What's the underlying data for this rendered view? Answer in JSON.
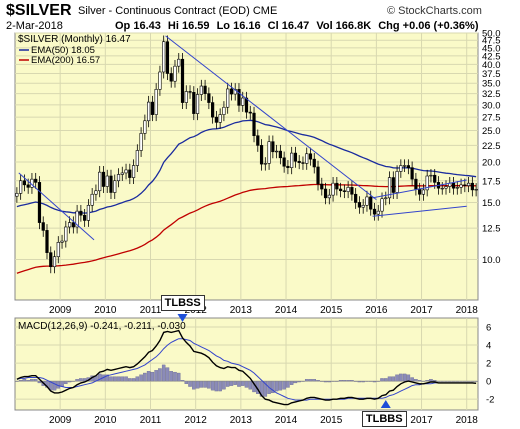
{
  "header": {
    "symbol": "$SILVER",
    "description": "Silver - Continuous Contract (EOD)",
    "exchange": "CME",
    "watermark": "© StockCharts.com",
    "date": "2-Mar-2018",
    "quote": {
      "open": "Op 16.43",
      "high": "Hi 16.59",
      "low": "Lo 16.16",
      "close": "Cl 16.47",
      "volume": "Vol 166.8K",
      "change": "Chg +0.06 (+0.36%)"
    }
  },
  "colors": {
    "background": "#fafac8",
    "candle_fill": "#ffffff",
    "candle_outline": "#000000",
    "ema50": "#1a2b9e",
    "ema200": "#c00000",
    "trendline": "#3344cc",
    "macd": "#000000",
    "signal": "#3344cc",
    "histogram": "#8b8bb8",
    "grid": "#d8d8b0"
  },
  "chart_data": [
    {
      "type": "candlestick",
      "title": "$SILVER (Monthly) 16.47",
      "legend": [
        {
          "name": "EMA(50) 18.05",
          "color": "#1a2b9e"
        },
        {
          "name": "EMA(200) 16.57",
          "color": "#c00000"
        }
      ],
      "x_ticks": [
        "2009",
        "2010",
        "2011",
        "2012",
        "2013",
        "2014",
        "2015",
        "2016",
        "2017",
        "2018"
      ],
      "y_ticks": [
        "50.0",
        "47.5",
        "45.0",
        "42.5",
        "40.0",
        "37.5",
        "35.0",
        "32.5",
        "30.0",
        "27.5",
        "25.0",
        "22.5",
        "20.0",
        "17.5",
        "15.0",
        "12.5",
        "10.0"
      ],
      "y_scale": "log",
      "ylim": [
        7.5,
        50
      ],
      "x_range": [
        "2008-01",
        "2018-03"
      ],
      "closes": [
        16.0,
        17.5,
        17.0,
        16.7,
        17.7,
        17.3,
        13.0,
        12.3,
        10.5,
        9.5,
        10.2,
        11.3,
        11.4,
        12.6,
        13.0,
        12.6,
        14.1,
        13.7,
        13.2,
        14.7,
        15.9,
        16.3,
        18.6,
        16.8,
        18.1,
        16.1,
        17.5,
        18.3,
        18.5,
        18.9,
        17.9,
        19.5,
        21.7,
        24.5,
        26.8,
        30.6,
        28.0,
        33.5,
        37.9,
        47.0,
        37.5,
        35.5,
        39.5,
        41.5,
        30.5,
        33.0,
        32.8,
        28.2,
        32.3,
        34.3,
        32.5,
        30.5,
        27.5,
        26.5,
        28.0,
        29.5,
        33.6,
        32.4,
        33.5,
        29.9,
        31.5,
        28.5,
        28.3,
        24.1,
        22.5,
        19.7,
        19.8,
        23.1,
        21.5,
        21.6,
        20.6,
        19.4,
        19.2,
        21.3,
        20.1,
        19.9,
        19.8,
        21.2,
        20.4,
        19.3,
        17.1,
        16.5,
        15.5,
        15.8,
        17.2,
        16.5,
        16.3,
        16.2,
        16.7,
        15.9,
        15.0,
        14.5,
        14.7,
        15.6,
        14.3,
        13.8,
        14.1,
        15.4,
        15.5,
        17.9,
        16.1,
        18.7,
        19.5,
        19.5,
        19.2,
        17.7,
        16.5,
        15.9,
        16.4,
        18.1,
        18.2,
        17.3,
        16.6,
        16.6,
        16.8,
        17.2,
        16.6,
        16.7,
        17.0,
        16.9,
        17.2,
        16.4,
        16.47
      ],
      "ema50_end": 18.05,
      "ema200_end": 16.57,
      "trendlines": [
        {
          "from": [
            "2008-02",
            18.5
          ],
          "to": [
            "2009-10",
            11.5
          ]
        },
        {
          "from": [
            "2011-05",
            49.0
          ],
          "to": [
            "2016-01",
            15.3
          ]
        },
        {
          "from": [
            "2015-12",
            13.6
          ],
          "to": [
            "2018-01",
            14.6
          ]
        },
        {
          "from": [
            "2015-12",
            15.5
          ],
          "to": [
            "2018-01",
            17.6
          ]
        }
      ]
    },
    {
      "type": "line",
      "title": "MACD(12,26,9) -0.241, -0.211, -0.030",
      "x_ticks": [
        "2009",
        "2010",
        "2011",
        "2012",
        "2013",
        "2014",
        "2015",
        "2016",
        "2017",
        "2018"
      ],
      "y_ticks": [
        "6",
        "4",
        "2",
        "0",
        "-2"
      ],
      "ylim": [
        -3.2,
        7.0
      ],
      "series": [
        {
          "key": "macd",
          "values": [
            0.2,
            0.4,
            0.5,
            0.5,
            0.6,
            0.6,
            0.2,
            -0.2,
            -0.6,
            -1.1,
            -1.3,
            -1.3,
            -1.2,
            -1.0,
            -0.8,
            -0.7,
            -0.4,
            -0.2,
            -0.1,
            0.1,
            0.4,
            0.6,
            1.0,
            1.1,
            1.3,
            1.2,
            1.3,
            1.4,
            1.5,
            1.6,
            1.5,
            1.6,
            1.9,
            2.3,
            2.7,
            3.2,
            3.4,
            3.9,
            4.5,
            5.4,
            5.5,
            5.4,
            5.5,
            5.6,
            4.8,
            4.3,
            3.9,
            3.3,
            3.2,
            3.1,
            2.9,
            2.6,
            2.1,
            1.7,
            1.5,
            1.4,
            1.6,
            1.5,
            1.5,
            1.2,
            1.1,
            0.7,
            0.3,
            -0.3,
            -0.9,
            -1.6,
            -2.0,
            -2.1,
            -2.3,
            -2.4,
            -2.5,
            -2.6,
            -2.6,
            -2.4,
            -2.3,
            -2.2,
            -2.1,
            -1.9,
            -1.8,
            -1.8,
            -1.9,
            -2.0,
            -2.1,
            -2.1,
            -2.0,
            -2.0,
            -1.9,
            -1.9,
            -1.8,
            -1.8,
            -1.9,
            -2.0,
            -2.0,
            -1.9,
            -1.9,
            -2.0,
            -1.9,
            -1.6,
            -1.5,
            -1.1,
            -1.0,
            -0.6,
            -0.3,
            -0.1,
            0.0,
            -0.1,
            -0.2,
            -0.3,
            -0.3,
            -0.2,
            -0.1,
            -0.1,
            -0.2,
            -0.2,
            -0.2,
            -0.2,
            -0.2,
            -0.2,
            -0.2,
            -0.2,
            -0.2,
            -0.2,
            -0.241
          ]
        },
        {
          "key": "signal",
          "values": [
            0.2,
            0.3,
            0.3,
            0.4,
            0.4,
            0.4,
            0.4,
            0.3,
            0.1,
            -0.1,
            -0.3,
            -0.5,
            -0.6,
            -0.7,
            -0.7,
            -0.7,
            -0.6,
            -0.5,
            -0.4,
            -0.3,
            -0.2,
            0.0,
            0.2,
            0.4,
            0.6,
            0.7,
            0.8,
            0.9,
            1.0,
            1.1,
            1.2,
            1.3,
            1.4,
            1.6,
            1.8,
            2.1,
            2.4,
            2.7,
            3.1,
            3.6,
            4.0,
            4.3,
            4.5,
            4.7,
            4.7,
            4.6,
            4.5,
            4.2,
            4.0,
            3.8,
            3.6,
            3.4,
            3.1,
            2.8,
            2.6,
            2.3,
            2.2,
            2.0,
            1.9,
            1.8,
            1.6,
            1.4,
            1.2,
            0.9,
            0.5,
            0.1,
            -0.3,
            -0.7,
            -1.0,
            -1.3,
            -1.5,
            -1.7,
            -1.9,
            -2.0,
            -2.1,
            -2.1,
            -2.1,
            -2.1,
            -2.0,
            -2.0,
            -2.0,
            -2.0,
            -2.0,
            -2.0,
            -2.0,
            -2.0,
            -2.0,
            -2.0,
            -1.9,
            -1.9,
            -1.9,
            -1.9,
            -1.9,
            -1.9,
            -1.9,
            -1.9,
            -1.9,
            -1.9,
            -1.8,
            -1.6,
            -1.5,
            -1.3,
            -1.1,
            -0.9,
            -0.7,
            -0.5,
            -0.4,
            -0.4,
            -0.3,
            -0.3,
            -0.3,
            -0.2,
            -0.2,
            -0.2,
            -0.2,
            -0.2,
            -0.2,
            -0.2,
            -0.2,
            -0.2,
            -0.2,
            -0.2,
            -0.211
          ]
        }
      ],
      "histogram_last": -0.03,
      "annotations": [
        {
          "label": "TLBSS",
          "date": "2011-09",
          "arrow": "down"
        },
        {
          "label": "TLBBS",
          "date": "2016-03",
          "arrow": "up"
        }
      ]
    }
  ]
}
